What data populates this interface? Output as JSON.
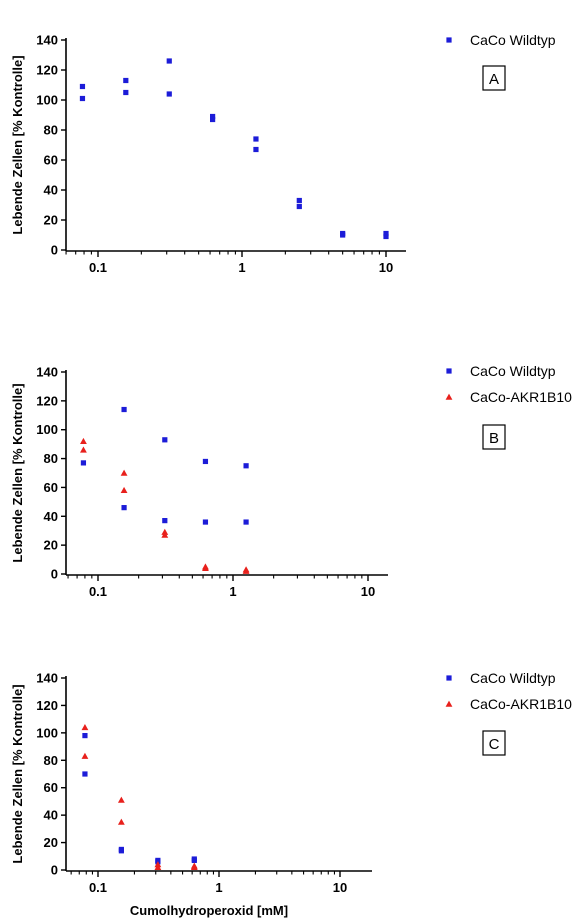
{
  "chart_data": [
    {
      "type": "scatter",
      "xscale": "log",
      "xlim": [
        0.05,
        20
      ],
      "ylim": [
        0,
        140
      ],
      "xticks": [
        "0.1",
        "1",
        "10"
      ],
      "yticks": [
        "0",
        "20",
        "40",
        "60",
        "80",
        "100",
        "120",
        "140"
      ],
      "ylabel": "Lebende Zellen [% Kontrolle]",
      "xlabel": "",
      "panel_label": "A",
      "legend_position": "right",
      "series": [
        {
          "name": "CaCo Wildtyp",
          "color": "#1c1cd8",
          "marker": "square",
          "points": [
            [
              0.078,
              109
            ],
            [
              0.078,
              101
            ],
            [
              0.156,
              113
            ],
            [
              0.156,
              105
            ],
            [
              0.3125,
              126
            ],
            [
              0.3125,
              104
            ],
            [
              0.625,
              89
            ],
            [
              0.625,
              87
            ],
            [
              1.25,
              74
            ],
            [
              1.25,
              67
            ],
            [
              2.5,
              33
            ],
            [
              2.5,
              29
            ],
            [
              5,
              11
            ],
            [
              5,
              10
            ],
            [
              10,
              11
            ],
            [
              10,
              9
            ]
          ]
        }
      ]
    },
    {
      "type": "scatter",
      "xscale": "log",
      "xlim": [
        0.05,
        20
      ],
      "ylim": [
        0,
        140
      ],
      "xticks": [
        "0.1",
        "1",
        "10"
      ],
      "yticks": [
        "0",
        "20",
        "40",
        "60",
        "80",
        "100",
        "120",
        "140"
      ],
      "ylabel": "Lebende Zellen [% Kontrolle]",
      "xlabel": "",
      "panel_label": "B",
      "legend_position": "right",
      "series": [
        {
          "name": "CaCo Wildtyp",
          "color": "#1c1cd8",
          "marker": "square",
          "points": [
            [
              0.078,
              77
            ],
            [
              0.156,
              114
            ],
            [
              0.156,
              46
            ],
            [
              0.3125,
              93
            ],
            [
              0.3125,
              37
            ],
            [
              0.625,
              78
            ],
            [
              0.625,
              36
            ],
            [
              1.25,
              75
            ],
            [
              1.25,
              36
            ]
          ]
        },
        {
          "name": "CaCo-AKR1B10",
          "color": "#e8201c",
          "marker": "triangle",
          "points": [
            [
              0.078,
              92
            ],
            [
              0.078,
              86
            ],
            [
              0.156,
              70
            ],
            [
              0.156,
              58
            ],
            [
              0.3125,
              29
            ],
            [
              0.3125,
              27
            ],
            [
              0.625,
              5
            ],
            [
              0.625,
              4
            ],
            [
              1.25,
              3
            ],
            [
              1.25,
              2
            ]
          ]
        }
      ]
    },
    {
      "type": "scatter",
      "xscale": "log",
      "xlim": [
        0.05,
        20
      ],
      "ylim": [
        0,
        140
      ],
      "xticks": [
        "0.1",
        "1",
        "10"
      ],
      "yticks": [
        "0",
        "20",
        "40",
        "60",
        "80",
        "100",
        "120",
        "140"
      ],
      "ylabel": "Lebende Zellen [% Kontrolle]",
      "xlabel": "Cumolhydroperoxid [mM]",
      "panel_label": "C",
      "legend_position": "right",
      "series": [
        {
          "name": "CaCo Wildtyp",
          "color": "#1c1cd8",
          "marker": "square",
          "points": [
            [
              0.078,
              98
            ],
            [
              0.078,
              70
            ],
            [
              0.156,
              15
            ],
            [
              0.156,
              14
            ],
            [
              0.3125,
              7
            ],
            [
              0.3125,
              6
            ],
            [
              0.625,
              8
            ],
            [
              0.625,
              7
            ]
          ]
        },
        {
          "name": "CaCo-AKR1B10",
          "color": "#e8201c",
          "marker": "triangle",
          "points": [
            [
              0.078,
              104
            ],
            [
              0.078,
              83
            ],
            [
              0.156,
              51
            ],
            [
              0.156,
              35
            ],
            [
              0.3125,
              4
            ],
            [
              0.3125,
              2
            ],
            [
              0.625,
              3
            ],
            [
              0.625,
              2
            ]
          ]
        }
      ]
    }
  ]
}
